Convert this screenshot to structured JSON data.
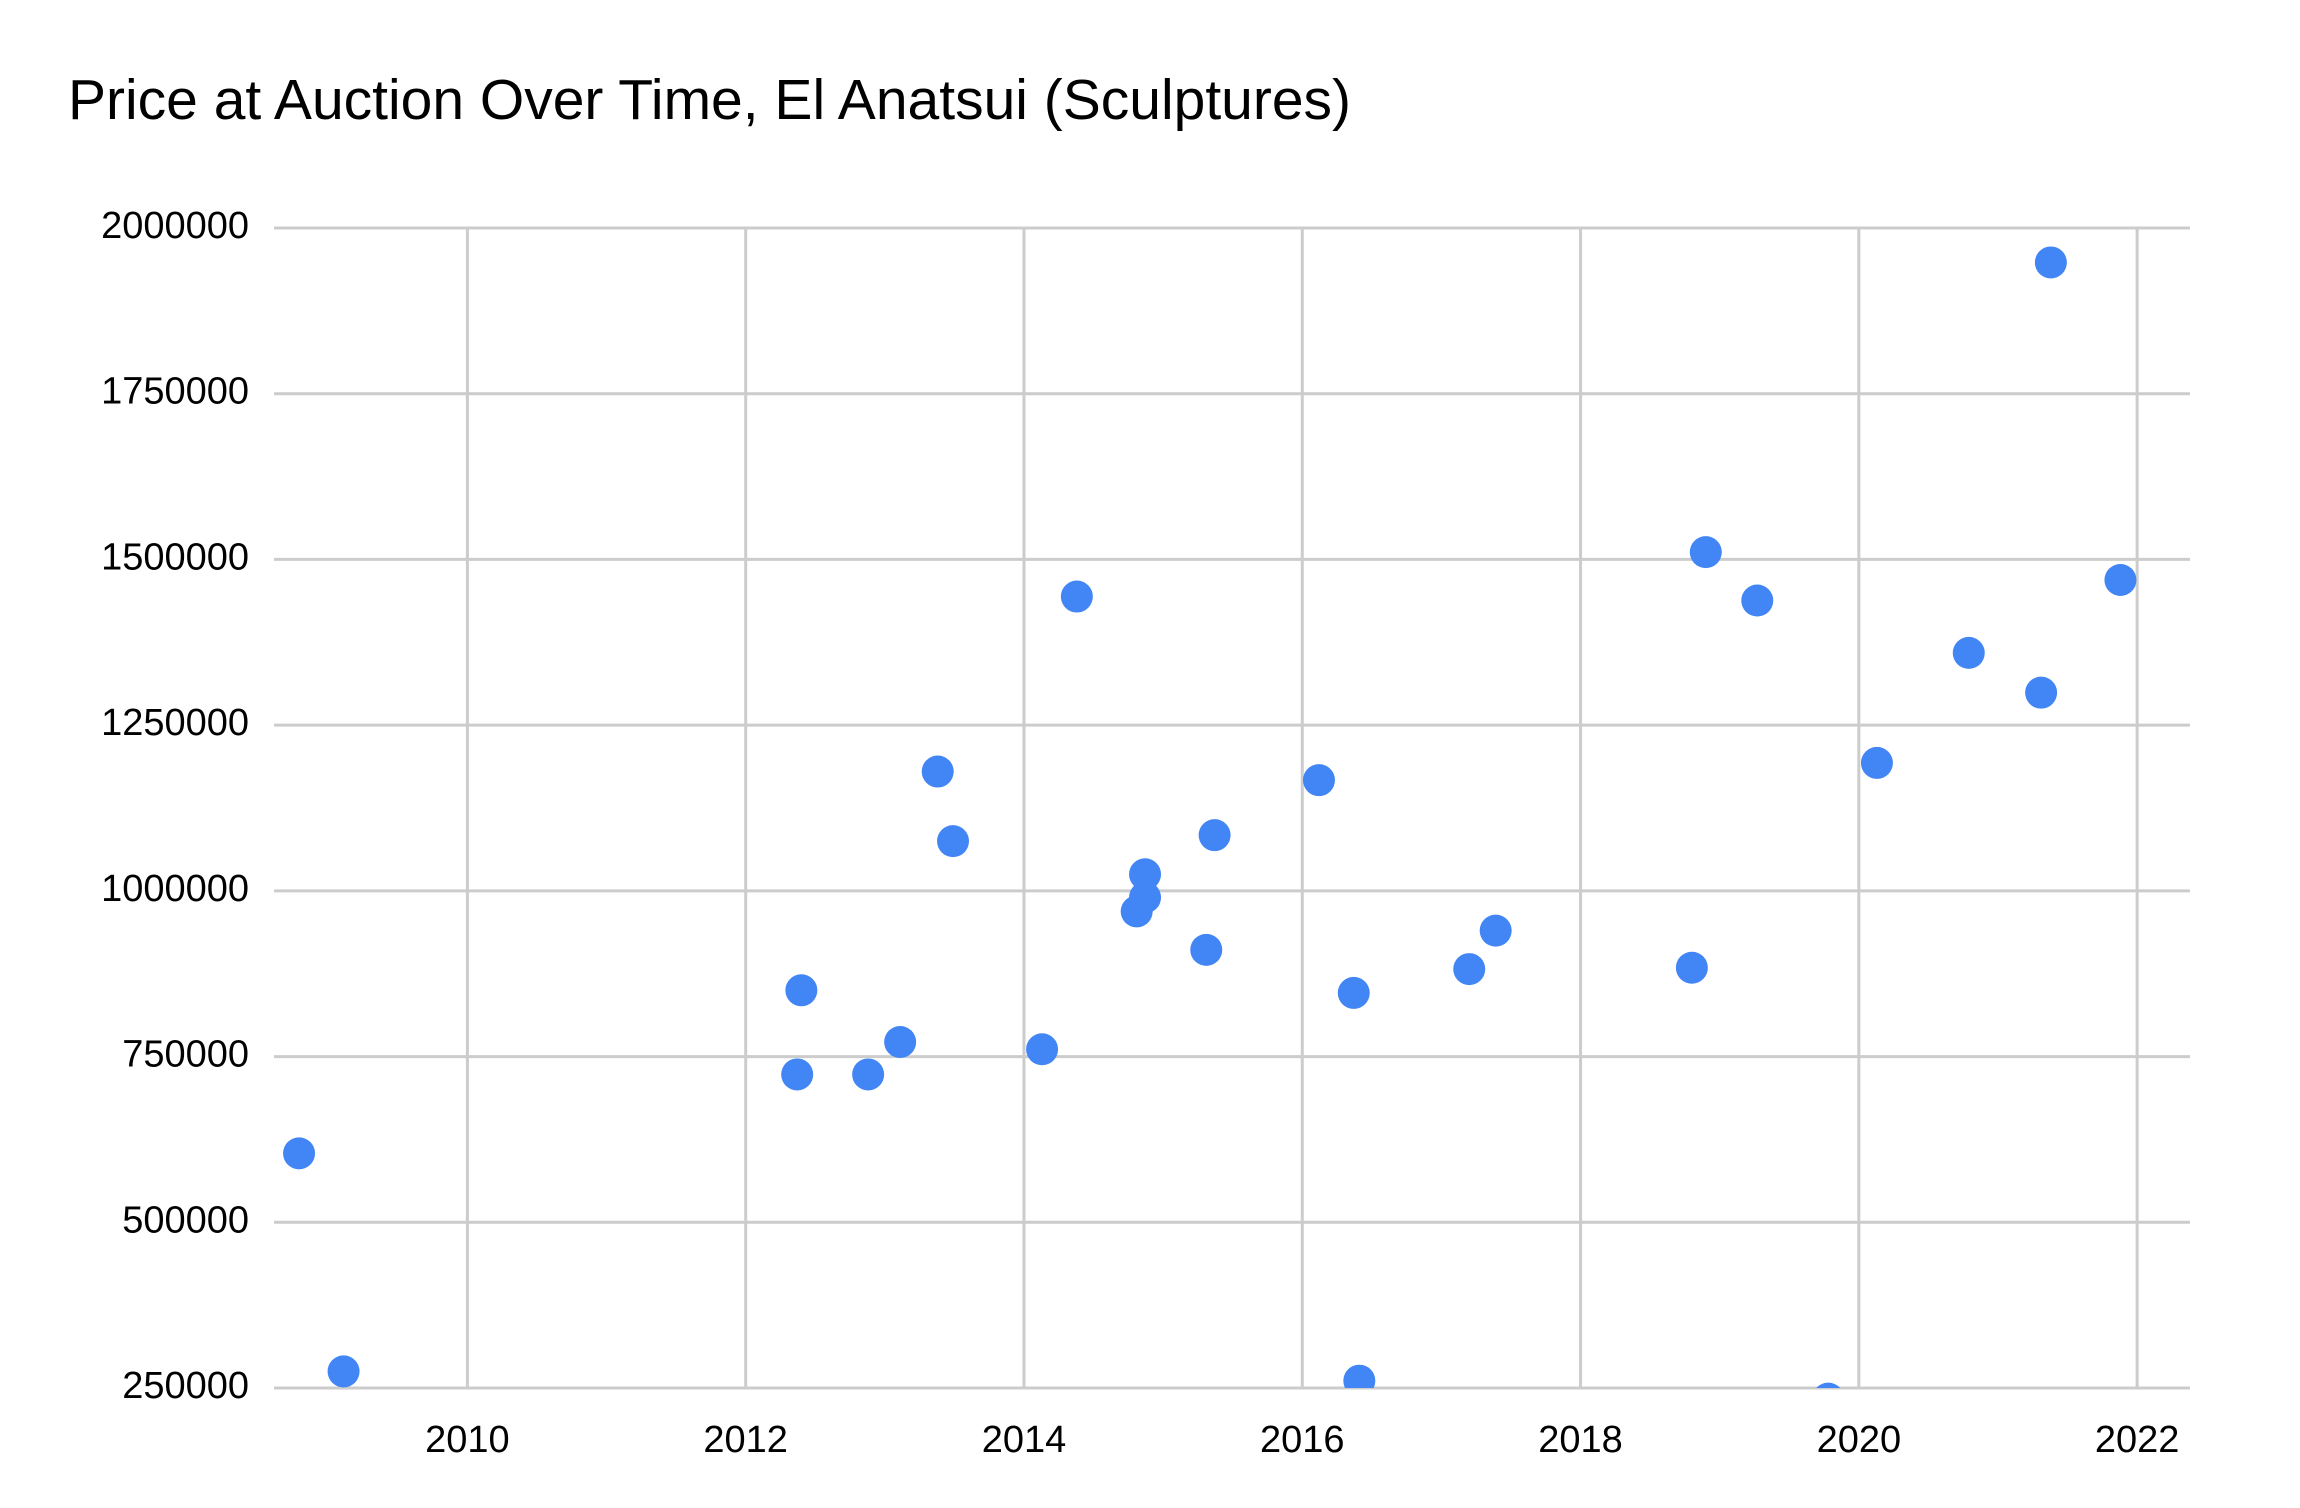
{
  "chart_data": {
    "type": "scatter",
    "title": "Price at Auction Over Time, El Anatsui (Sculptures)",
    "x": [
      2008.79,
      2009.11,
      2012.37,
      2012.4,
      2012.88,
      2013.11,
      2013.38,
      2013.49,
      2014.13,
      2014.38,
      2014.81,
      2014.87,
      2014.87,
      2015.31,
      2015.37,
      2016.12,
      2016.37,
      2016.41,
      2017.2,
      2017.39,
      2018.8,
      2018.9,
      2019.27,
      2019.78,
      2020.13,
      2020.79,
      2021.31,
      2021.38,
      2021.88
    ],
    "values": [
      604000,
      275000,
      723000,
      850000,
      723000,
      772000,
      1180000,
      1075000,
      761000,
      1444000,
      969000,
      990000,
      1025000,
      911000,
      1084000,
      1167000,
      846000,
      261000,
      882000,
      940000,
      884000,
      1511000,
      1438000,
      234000,
      1193000,
      1359000,
      1299000,
      1948000,
      1469000
    ],
    "color": "#4285f4",
    "xlim": [
      2008.61,
      2022.38
    ],
    "xticks": [
      2010,
      2012,
      2014,
      2016,
      2018,
      2020,
      2022
    ],
    "ylim": [
      250000,
      2000000
    ],
    "yticks": [
      250000,
      500000,
      750000,
      1000000,
      1250000,
      1500000,
      1750000,
      2000000
    ],
    "grid": true
  }
}
